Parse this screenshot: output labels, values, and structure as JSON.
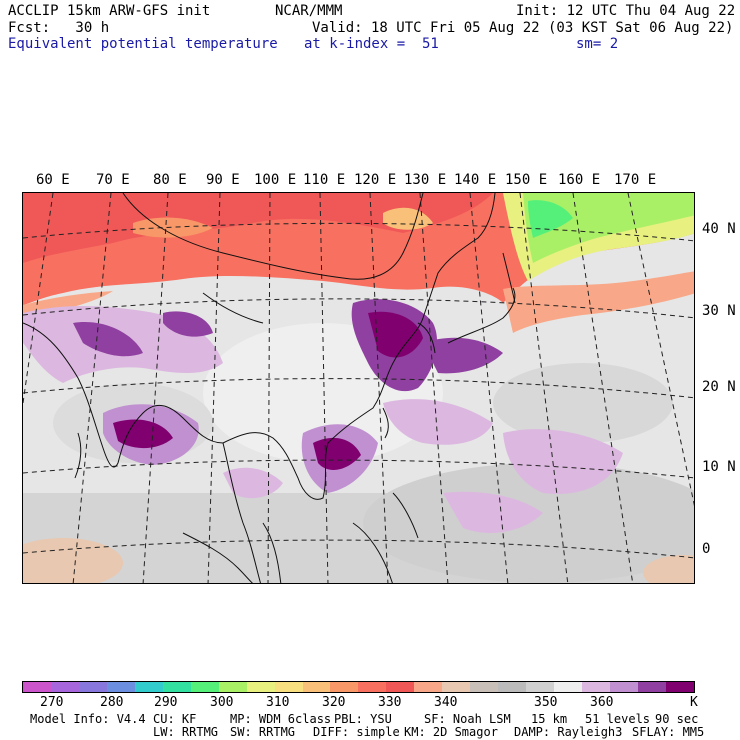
{
  "header": {
    "line1_left": "ACCLIP 15km ARW-GFS init",
    "line1_mid": "NCAR/MMM",
    "line1_right": "Init: 12 UTC Thu 04 Aug 22",
    "line2_left": "Fcst:   30 h",
    "line2_right": "Valid: 18 UTC Fri 05 Aug 22 (03 KST Sat 06 Aug 22)",
    "line3_left": "Equivalent potential temperature",
    "line3_mid": "at k-index =  51",
    "line3_right": "sm= 2"
  },
  "map": {
    "lon_labels": [
      "60 E",
      "70 E",
      "80 E",
      "90 E",
      "100 E",
      "110 E",
      "120 E",
      "130 E",
      "140 E",
      "150 E",
      "160 E",
      "170 E"
    ],
    "lat_labels": [
      "40 N",
      "30 N",
      "20 N",
      "10 N",
      "0"
    ]
  },
  "colorbar": {
    "colors": [
      "#cc55cc",
      "#a866dd",
      "#8877dd",
      "#6c8fe0",
      "#33cccc",
      "#33e0a0",
      "#55f07a",
      "#aaf066",
      "#e8f080",
      "#f8e080",
      "#f8c078",
      "#f89868",
      "#f87060",
      "#f05858",
      "#f8a888",
      "#e8c8b0",
      "#c8c0b8",
      "#bbbbbb",
      "#d0d0d0",
      "#eeeeee",
      "#dcb8e0",
      "#c090d0",
      "#9040a0",
      "#800070"
    ],
    "tick_labels": [
      "270",
      "280",
      "290",
      "300",
      "310",
      "320",
      "330",
      "340",
      "350",
      "360"
    ],
    "unit": "K"
  },
  "footer": {
    "line1": [
      "Model Info: V4.4",
      "CU: KF",
      "MP: WDM 6class",
      "PBL: YSU",
      "SF: Noah LSM",
      "15 km",
      "51 levels",
      "90 sec"
    ],
    "line2": [
      "LW: RRTMG",
      "SW: RRTMG",
      "DIFF: simple",
      "KM: 2D Smagor",
      "DAMP: Rayleigh3",
      "SFLAY: MM5"
    ]
  }
}
